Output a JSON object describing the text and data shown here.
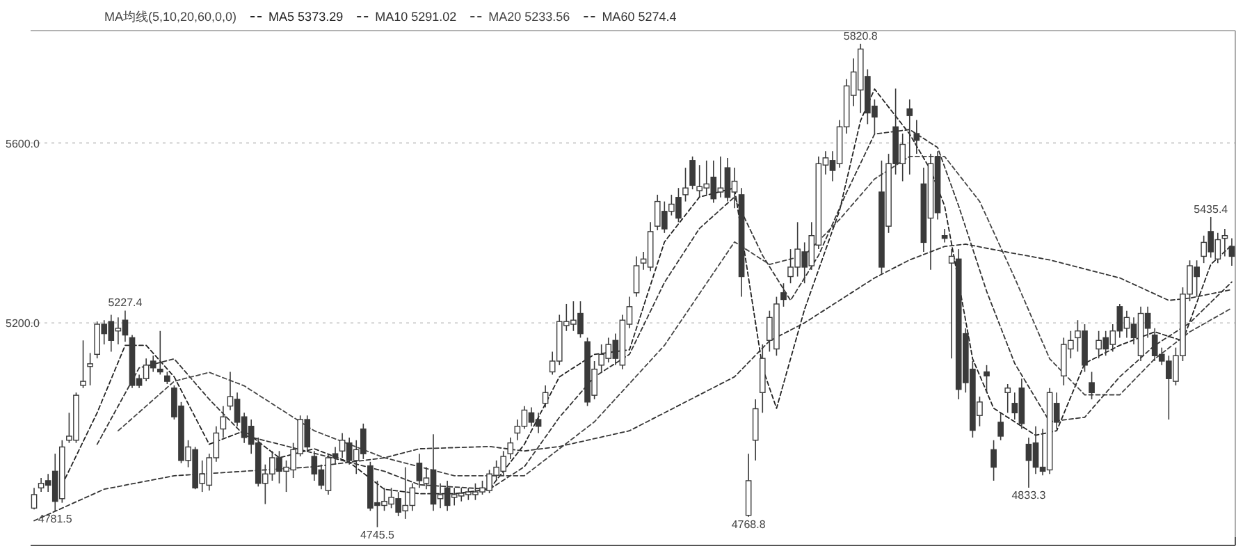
{
  "chart_data": {
    "type": "candlestick",
    "subtitle": "MA均线(5,10,20,60,0,0)",
    "categories": [
      null,
      null,
      null,
      null,
      null,
      null,
      null,
      null,
      null,
      null,
      null,
      null,
      null,
      null,
      null,
      null,
      null,
      null,
      null,
      null,
      null,
      null,
      null,
      null,
      null,
      null,
      null,
      null,
      null,
      null,
      null,
      null,
      null,
      null,
      null,
      null,
      null,
      null,
      null,
      null,
      null,
      null,
      null,
      null,
      null,
      null,
      null,
      null,
      null,
      null,
      null,
      null,
      null,
      null,
      null,
      null,
      null,
      null,
      null,
      null,
      null,
      null,
      null,
      null,
      null,
      null,
      null,
      null,
      null,
      null,
      null,
      null,
      null,
      null,
      null,
      null,
      null,
      null,
      null,
      null,
      null,
      null,
      null,
      null,
      null,
      null,
      null,
      null,
      null,
      null,
      null,
      null,
      null,
      null,
      null,
      null,
      null,
      null,
      null,
      null,
      null,
      null,
      null,
      null,
      null,
      null,
      null,
      null,
      null,
      null,
      null,
      null,
      null,
      null,
      null,
      null,
      null,
      null,
      null,
      null,
      null,
      null,
      null,
      null,
      null,
      null,
      null,
      null,
      null,
      null,
      null,
      null,
      null,
      null,
      null,
      null,
      null,
      null,
      null,
      null,
      null,
      null,
      null,
      null,
      null,
      null,
      null,
      null,
      null,
      null,
      null,
      null,
      null,
      null,
      null,
      null,
      null,
      null,
      null,
      null,
      null,
      null,
      null,
      null,
      null,
      null,
      null,
      null,
      null,
      null,
      null,
      null
    ],
    "ohlc": [
      [
        4788,
        4833,
        4785,
        4818
      ],
      [
        4833,
        4855,
        4824,
        4843
      ],
      [
        4849,
        4864,
        4824,
        4839
      ],
      [
        4870,
        4909,
        4781.5,
        4803
      ],
      [
        4809,
        4939,
        4800,
        4924
      ],
      [
        4939,
        5000,
        4933,
        4948
      ],
      [
        4939,
        5045,
        4933,
        5039
      ],
      [
        5061,
        5161,
        5055,
        5070
      ],
      [
        5103,
        5133,
        5061,
        5109
      ],
      [
        5130,
        5203,
        5121,
        5197
      ],
      [
        5197,
        5206,
        5152,
        5176
      ],
      [
        5203,
        5218,
        5136,
        5161
      ],
      [
        5182,
        5212,
        5152,
        5188
      ],
      [
        5206,
        5227.4,
        5158,
        5173
      ],
      [
        5167,
        5173,
        5055,
        5061
      ],
      [
        5076,
        5085,
        5055,
        5061
      ],
      [
        5076,
        5121,
        5070,
        5106
      ],
      [
        5115,
        5127,
        5091,
        5100
      ],
      [
        5097,
        5182,
        5085,
        5091
      ],
      [
        5082,
        5091,
        5064,
        5070
      ],
      [
        5055,
        5061,
        4985,
        4991
      ],
      [
        5015,
        5024,
        4888,
        4894
      ],
      [
        4894,
        4939,
        4879,
        4924
      ],
      [
        4918,
        4924,
        4830,
        4833
      ],
      [
        4843,
        4894,
        4824,
        4864
      ],
      [
        4839,
        4909,
        4827,
        4900
      ],
      [
        4900,
        4970,
        4891,
        4955
      ],
      [
        4964,
        5015,
        4945,
        4991
      ],
      [
        5015,
        5091,
        5006,
        5036
      ],
      [
        5030,
        5045,
        4970,
        4979
      ],
      [
        4991,
        5000,
        4933,
        4945
      ],
      [
        4970,
        4985,
        4909,
        4930
      ],
      [
        4933,
        4945,
        4836,
        4843
      ],
      [
        4843,
        4885,
        4797,
        4864
      ],
      [
        4864,
        4915,
        4849,
        4900
      ],
      [
        4900,
        4915,
        4843,
        4870
      ],
      [
        4870,
        4894,
        4824,
        4879
      ],
      [
        4873,
        4933,
        4855,
        4918
      ],
      [
        4909,
        4994,
        4903,
        4985
      ],
      [
        4985,
        4994,
        4915,
        4924
      ],
      [
        4903,
        4915,
        4849,
        4864
      ],
      [
        4873,
        4885,
        4830,
        4839
      ],
      [
        4827,
        4909,
        4818,
        4900
      ],
      [
        4909,
        4924,
        4885,
        4900
      ],
      [
        4915,
        4955,
        4900,
        4939
      ],
      [
        4933,
        4945,
        4885,
        4894
      ],
      [
        4894,
        4939,
        4864,
        4918
      ],
      [
        4964,
        4976,
        4897,
        4909
      ],
      [
        4882,
        4891,
        4782,
        4788
      ],
      [
        4800,
        4849,
        4745.5,
        4794
      ],
      [
        4794,
        4833,
        4782,
        4803
      ],
      [
        4797,
        4833,
        4788,
        4812
      ],
      [
        4809,
        4824,
        4770,
        4779
      ],
      [
        4782,
        4879,
        4764,
        4794
      ],
      [
        4794,
        4843,
        4782,
        4833
      ],
      [
        4888,
        4909,
        4833,
        4849
      ],
      [
        4843,
        4879,
        4830,
        4855
      ],
      [
        4873,
        4952,
        4782,
        4797
      ],
      [
        4809,
        4843,
        4788,
        4818
      ],
      [
        4833,
        4849,
        4782,
        4794
      ],
      [
        4812,
        4833,
        4794,
        4818
      ],
      [
        4815,
        4833,
        4803,
        4821
      ],
      [
        4818,
        4833,
        4806,
        4824
      ],
      [
        4818,
        4843,
        4806,
        4824
      ],
      [
        4824,
        4849,
        4818,
        4833
      ],
      [
        4827,
        4873,
        4821,
        4864
      ],
      [
        4861,
        4894,
        4849,
        4879
      ],
      [
        4870,
        4915,
        4861,
        4903
      ],
      [
        4909,
        4945,
        4897,
        4933
      ],
      [
        4955,
        4985,
        4939,
        4970
      ],
      [
        4970,
        5015,
        4964,
        5006
      ],
      [
        5000,
        5012,
        4970,
        4979
      ],
      [
        4985,
        5000,
        4955,
        4970
      ],
      [
        5021,
        5061,
        5012,
        5045
      ],
      [
        5091,
        5136,
        5085,
        5115
      ],
      [
        5115,
        5218,
        5106,
        5203
      ],
      [
        5194,
        5242,
        5182,
        5203
      ],
      [
        5197,
        5248,
        5182,
        5206
      ],
      [
        5221,
        5248,
        5167,
        5176
      ],
      [
        5158,
        5167,
        5015,
        5024
      ],
      [
        5039,
        5115,
        5030,
        5097
      ],
      [
        5106,
        5152,
        5091,
        5130
      ],
      [
        5121,
        5167,
        5112,
        5152
      ],
      [
        5161,
        5176,
        5106,
        5121
      ],
      [
        5106,
        5218,
        5097,
        5206
      ],
      [
        5197,
        5258,
        5188,
        5236
      ],
      [
        5267,
        5348,
        5258,
        5327
      ],
      [
        5333,
        5358,
        5318,
        5342
      ],
      [
        5324,
        5424,
        5315,
        5403
      ],
      [
        5415,
        5485,
        5406,
        5470
      ],
      [
        5448,
        5470,
        5400,
        5409
      ],
      [
        5448,
        5485,
        5439,
        5464
      ],
      [
        5479,
        5500,
        5424,
        5433
      ],
      [
        5485,
        5545,
        5470,
        5500
      ],
      [
        5561,
        5570,
        5497,
        5506
      ],
      [
        5494,
        5551,
        5479,
        5503
      ],
      [
        5500,
        5561,
        5485,
        5509
      ],
      [
        5524,
        5561,
        5467,
        5476
      ],
      [
        5491,
        5570,
        5479,
        5500
      ],
      [
        5545,
        5567,
        5470,
        5479
      ],
      [
        5491,
        5545,
        5455,
        5515
      ],
      [
        5485,
        5500,
        5258,
        5303
      ],
      [
        4772,
        4909,
        4768.8,
        4849
      ],
      [
        4939,
        5030,
        4894,
        5009
      ],
      [
        5045,
        5152,
        5000,
        5121
      ],
      [
        5161,
        5227,
        5136,
        5212
      ],
      [
        5142,
        5258,
        5127,
        5242
      ],
      [
        5267,
        5288,
        5236,
        5252
      ],
      [
        5303,
        5364,
        5288,
        5324
      ],
      [
        5324,
        5424,
        5303,
        5364
      ],
      [
        5358,
        5379,
        5288,
        5324
      ],
      [
        5327,
        5424,
        5318,
        5394
      ],
      [
        5373,
        5570,
        5364,
        5554
      ],
      [
        5551,
        5582,
        5530,
        5567
      ],
      [
        5561,
        5582,
        5515,
        5539
      ],
      [
        5554,
        5651,
        5545,
        5636
      ],
      [
        5636,
        5742,
        5621,
        5727
      ],
      [
        5706,
        5788,
        5682,
        5758
      ],
      [
        5718,
        5820.8,
        5667,
        5809
      ],
      [
        5748,
        5764,
        5642,
        5667
      ],
      [
        5682,
        5697,
        5621,
        5658
      ],
      [
        5491,
        5561,
        5309,
        5324
      ],
      [
        5415,
        5576,
        5400,
        5554
      ],
      [
        5636,
        5721,
        5530,
        5554
      ],
      [
        5554,
        5621,
        5515,
        5597
      ],
      [
        5676,
        5697,
        5530,
        5661
      ],
      [
        5621,
        5651,
        5576,
        5606
      ],
      [
        5509,
        5545,
        5358,
        5379
      ],
      [
        5433,
        5576,
        5318,
        5554
      ],
      [
        5570,
        5582,
        5430,
        5445
      ],
      [
        5394,
        5409,
        5379,
        5388
      ],
      [
        5333,
        5364,
        5121,
        5348
      ],
      [
        5342,
        5364,
        5030,
        5052
      ],
      [
        5176,
        5188,
        5045,
        5067
      ],
      [
        5097,
        5115,
        4945,
        4961
      ],
      [
        4994,
        5036,
        4970,
        5024
      ],
      [
        5091,
        5106,
        5045,
        5082
      ],
      [
        4918,
        4939,
        4849,
        4879
      ],
      [
        4979,
        5000,
        4939,
        4948
      ],
      [
        5045,
        5064,
        5000,
        5055
      ],
      [
        5021,
        5045,
        4985,
        5000
      ],
      [
        5055,
        5076,
        4964,
        4976
      ],
      [
        4930,
        4945,
        4833.3,
        4894
      ],
      [
        4933,
        4970,
        4864,
        4879
      ],
      [
        4879,
        4964,
        4861,
        4870
      ],
      [
        4873,
        5055,
        4864,
        5045
      ],
      [
        5021,
        5045,
        4964,
        4979
      ],
      [
        5082,
        5167,
        5061,
        5152
      ],
      [
        5142,
        5182,
        5121,
        5161
      ],
      [
        5167,
        5206,
        5136,
        5182
      ],
      [
        5182,
        5197,
        5091,
        5106
      ],
      [
        5067,
        5091,
        5030,
        5045
      ],
      [
        5142,
        5182,
        5121,
        5161
      ],
      [
        5167,
        5182,
        5127,
        5142
      ],
      [
        5152,
        5197,
        5136,
        5182
      ],
      [
        5236,
        5242,
        5167,
        5182
      ],
      [
        5188,
        5227,
        5167,
        5212
      ],
      [
        5197,
        5212,
        5152,
        5167
      ],
      [
        5127,
        5236,
        5115,
        5221
      ],
      [
        5221,
        5236,
        5167,
        5188
      ],
      [
        5173,
        5188,
        5115,
        5127
      ],
      [
        5130,
        5145,
        5106,
        5115
      ],
      [
        5115,
        5127,
        4985,
        5076
      ],
      [
        5070,
        5145,
        5061,
        5127
      ],
      [
        5127,
        5279,
        5115,
        5264
      ],
      [
        5264,
        5339,
        5248,
        5327
      ],
      [
        5324,
        5339,
        5258,
        5303
      ],
      [
        5348,
        5394,
        5333,
        5379
      ],
      [
        5403,
        5435.4,
        5345,
        5358
      ],
      [
        5342,
        5400,
        5333,
        5385
      ],
      [
        5388,
        5409,
        5348,
        5394
      ],
      [
        5370,
        5388,
        5327,
        5348
      ]
    ],
    "series": [
      {
        "name": "MA5 5373.29",
        "type": "line",
        "color": "#222222",
        "values": [
          null,
          null,
          null,
          null,
          4840,
          null,
          null,
          null,
          null,
          5000,
          null,
          null,
          null,
          5150,
          null,
          null,
          5150,
          null,
          null,
          null,
          5080,
          null,
          null,
          null,
          null,
          4930,
          null,
          null,
          null,
          null,
          4960,
          null,
          null,
          null,
          null,
          4900,
          null,
          null,
          null,
          null,
          4920,
          null,
          null,
          null,
          null,
          4890,
          null,
          null,
          null,
          null,
          4830,
          null,
          null,
          null,
          null,
          4820,
          null,
          null,
          null,
          null,
          4820,
          null,
          null,
          null,
          null,
          4830,
          null,
          null,
          null,
          null,
          4930,
          null,
          null,
          null,
          null,
          5080,
          null,
          null,
          null,
          null,
          5130,
          null,
          null,
          null,
          null,
          5140,
          null,
          null,
          null,
          null,
          5380,
          null,
          null,
          null,
          null,
          5480,
          null,
          null,
          null,
          null,
          5500,
          null,
          null,
          null,
          5100,
          null,
          5010,
          null,
          null,
          null,
          5230,
          null,
          null,
          null,
          null,
          5450,
          null,
          null,
          5650,
          null,
          5720,
          null,
          null,
          null,
          null,
          5620,
          null,
          null,
          5540,
          null,
          5460,
          null,
          null,
          null,
          5120,
          null,
          null,
          5010,
          null,
          null,
          4980,
          null,
          null,
          4950,
          null,
          null,
          4960,
          null,
          null,
          null,
          5110,
          null,
          null,
          null,
          null,
          5150,
          null,
          null,
          null,
          null,
          5180,
          null,
          null,
          null,
          5160,
          null,
          null,
          null,
          5330,
          null,
          null,
          5373
        ]
      },
      {
        "name": "MA10 5291.02",
        "type": "line",
        "color": "#333333",
        "values": [
          null,
          null,
          null,
          null,
          null,
          null,
          null,
          null,
          null,
          4930,
          null,
          null,
          null,
          null,
          null,
          5100,
          null,
          null,
          null,
          null,
          5120,
          null,
          null,
          null,
          null,
          5030,
          null,
          null,
          null,
          null,
          4950,
          null,
          null,
          null,
          null,
          null,
          null,
          null,
          null,
          null,
          4910,
          null,
          null,
          null,
          null,
          null,
          null,
          null,
          null,
          null,
          4870,
          null,
          null,
          null,
          null,
          4840,
          null,
          null,
          null,
          null,
          null,
          null,
          null,
          null,
          null,
          4830,
          null,
          null,
          null,
          null,
          4880,
          null,
          null,
          null,
          null,
          4990,
          null,
          null,
          null,
          null,
          5080,
          null,
          null,
          null,
          null,
          5130,
          null,
          null,
          null,
          null,
          5290,
          null,
          null,
          null,
          null,
          5410,
          null,
          null,
          null,
          null,
          5480,
          null,
          null,
          null,
          5350,
          null,
          null,
          null,
          5250,
          null,
          null,
          null,
          5350,
          null,
          null,
          null,
          5490,
          null,
          null,
          null,
          5620,
          null,
          null,
          null,
          null,
          5630,
          null,
          null,
          null,
          5590,
          null,
          null,
          5460,
          null,
          null,
          null,
          5270,
          null,
          null,
          null,
          5110,
          null,
          null,
          null,
          null,
          4980,
          null,
          null,
          null,
          null,
          4990,
          null,
          null,
          null,
          null,
          5080,
          null,
          null,
          null,
          null,
          5150,
          null,
          null,
          null,
          null,
          5200,
          null,
          null,
          null,
          null,
          null,
          5291
        ]
      },
      {
        "name": "MA20 5233.56",
        "type": "line",
        "color": "#444444",
        "values": [
          null,
          null,
          null,
          null,
          null,
          null,
          null,
          null,
          null,
          null,
          null,
          null,
          4960,
          null,
          null,
          null,
          null,
          null,
          null,
          null,
          5070,
          null,
          null,
          null,
          null,
          5090,
          null,
          null,
          null,
          null,
          5060,
          null,
          null,
          null,
          null,
          null,
          null,
          null,
          null,
          null,
          4960,
          null,
          null,
          null,
          null,
          null,
          null,
          null,
          null,
          null,
          4900,
          null,
          null,
          null,
          null,
          null,
          null,
          null,
          null,
          null,
          4860,
          null,
          null,
          null,
          null,
          null,
          null,
          null,
          null,
          null,
          4860,
          null,
          null,
          null,
          null,
          null,
          null,
          null,
          null,
          null,
          4980,
          null,
          null,
          null,
          null,
          null,
          null,
          null,
          null,
          null,
          5150,
          null,
          null,
          null,
          null,
          null,
          null,
          null,
          null,
          null,
          5380,
          null,
          null,
          null,
          null,
          5330,
          null,
          null,
          null,
          null,
          5350,
          null,
          null,
          null,
          null,
          5430,
          null,
          null,
          null,
          null,
          5520,
          null,
          null,
          null,
          null,
          5570,
          null,
          null,
          null,
          null,
          5570,
          null,
          null,
          null,
          null,
          5470,
          null,
          null,
          null,
          null,
          5300,
          null,
          null,
          null,
          null,
          5120,
          null,
          null,
          null,
          null,
          5040,
          null,
          null,
          null,
          null,
          5040,
          null,
          null,
          null,
          null,
          5120,
          null,
          null,
          null,
          null,
          5180,
          null,
          null,
          null,
          null,
          null,
          5233
        ]
      },
      {
        "name": "MA60 5274.4",
        "type": "line",
        "color": "#333333",
        "values": [
          4760,
          null,
          null,
          null,
          null,
          null,
          null,
          null,
          null,
          null,
          4830,
          null,
          null,
          null,
          null,
          null,
          null,
          null,
          null,
          null,
          4860,
          null,
          null,
          null,
          null,
          null,
          null,
          null,
          null,
          null,
          4870,
          null,
          null,
          null,
          null,
          null,
          null,
          null,
          null,
          null,
          4880,
          null,
          null,
          null,
          null,
          null,
          null,
          null,
          null,
          null,
          4900,
          null,
          null,
          null,
          null,
          4920,
          null,
          null,
          null,
          null,
          null,
          null,
          null,
          null,
          null,
          4925,
          null,
          null,
          null,
          null,
          4915,
          null,
          null,
          null,
          null,
          4925,
          null,
          null,
          null,
          null,
          null,
          null,
          null,
          null,
          null,
          4960,
          null,
          null,
          null,
          null,
          null,
          null,
          null,
          null,
          null,
          5040,
          null,
          null,
          null,
          null,
          5080,
          null,
          null,
          null,
          null,
          5160,
          null,
          null,
          null,
          null,
          5200,
          null,
          null,
          null,
          null,
          5250,
          null,
          null,
          null,
          null,
          5300,
          null,
          null,
          null,
          null,
          5340,
          null,
          null,
          null,
          null,
          5370,
          null,
          null,
          5375,
          null,
          null,
          null,
          null,
          5360,
          null,
          null,
          null,
          null,
          null,
          null,
          5340,
          null,
          null,
          null,
          null,
          null,
          null,
          null,
          null,
          null,
          5300,
          null,
          null,
          null,
          null,
          null,
          null,
          5250,
          null,
          null,
          5255,
          null,
          null,
          null,
          null,
          null,
          5274
        ]
      }
    ],
    "ylim": [
      4705,
      5850
    ],
    "yticks": [
      {
        "value": 5200,
        "label": "5200.0"
      },
      {
        "value": 5600,
        "label": "5600.0"
      }
    ],
    "grid": "y",
    "tick_labels": "y",
    "legend": "top",
    "line_style": "dashed",
    "annotations": [
      {
        "text": "5227.4",
        "y": 5227.4
      },
      {
        "text": "4781.5",
        "y": 4781.5
      },
      {
        "text": "4745.5",
        "y": 4745.5
      },
      {
        "text": "4768.8",
        "y": 4768.8
      },
      {
        "text": "5820.8",
        "y": 5820.8
      },
      {
        "text": "4833.3",
        "y": 4833.3
      },
      {
        "text": "5435.4",
        "y": 5435.4
      }
    ]
  }
}
